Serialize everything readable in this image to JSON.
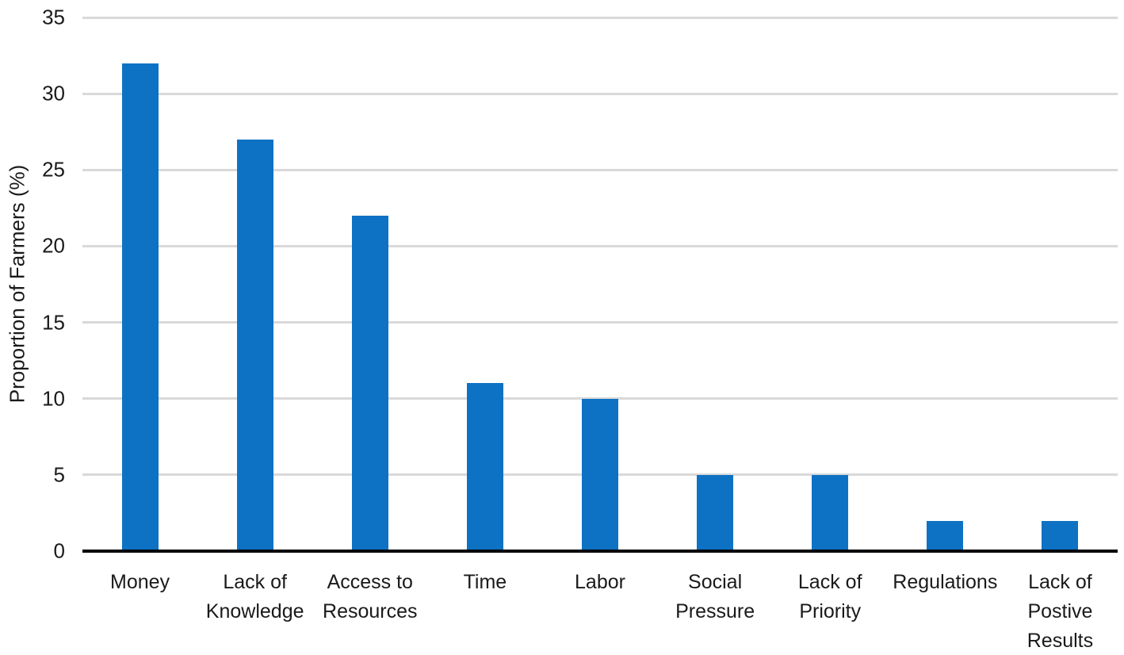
{
  "chart_data": {
    "type": "bar",
    "categories": [
      "Money",
      "Lack of\nKnowledge",
      "Access to\nResources",
      "Time",
      "Labor",
      "Social\nPressure",
      "Lack of\nPriority",
      "Regulations",
      "Lack of\nPostive\nResults"
    ],
    "category_ids": [
      "money",
      "lack-of-knowledge",
      "access-to-resources",
      "time",
      "labor",
      "social-pressure",
      "lack-of-priority",
      "regulations",
      "lack-of-postive-results"
    ],
    "values": [
      32,
      27,
      22,
      11,
      10,
      5,
      5,
      2,
      2
    ],
    "title": "",
    "xlabel": "",
    "ylabel": "Proportion of Farmers (%)",
    "ylim": [
      0,
      35
    ],
    "ytick_step": 5,
    "yticks": [
      0,
      5,
      10,
      15,
      20,
      25,
      30,
      35
    ],
    "grid": true,
    "legend": null,
    "colors": {
      "bar": "#0e72c4",
      "gridline": "#d9d9d9",
      "axis_line": "#000000",
      "text": "#1a1a1a",
      "background": "#ffffff"
    }
  }
}
